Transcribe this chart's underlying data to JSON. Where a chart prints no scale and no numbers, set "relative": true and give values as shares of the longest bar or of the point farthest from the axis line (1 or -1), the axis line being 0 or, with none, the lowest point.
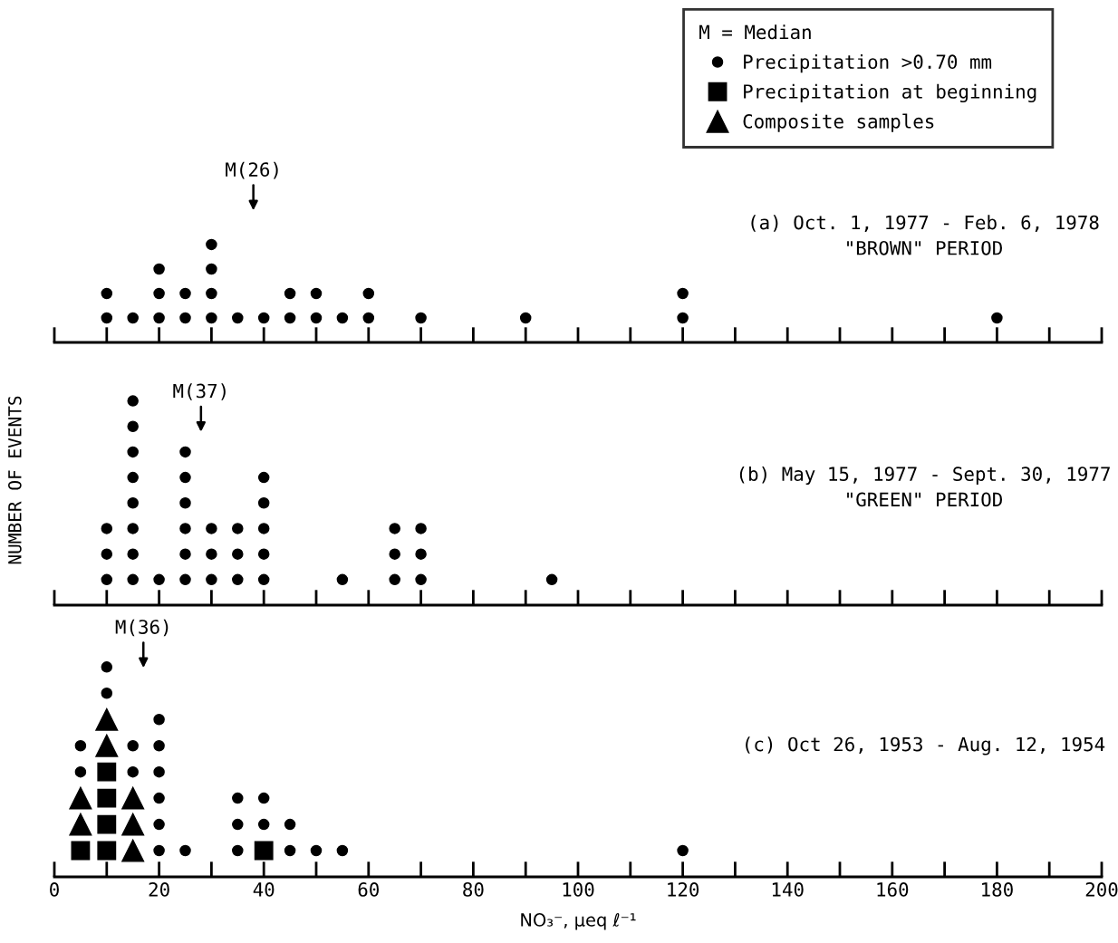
{
  "chart_data": [
    {
      "type": "scatter",
      "title": "(a) Oct. 1, 1977 - Feb. 6, 1978\n\"BROWN\" PERIOD",
      "relative": true,
      "tick_labels": false,
      "grid": false,
      "xlim": [
        0,
        200
      ],
      "xticks": [
        0,
        20,
        40,
        60,
        80,
        100,
        120,
        140,
        160,
        180,
        200
      ],
      "annotations": [
        "M(26)"
      ],
      "series": [
        {
          "color": "#000000",
          "marker": "circle",
          "x": [
            10,
            10,
            15,
            20,
            20,
            20,
            25,
            25,
            30,
            30,
            30,
            30,
            35,
            40,
            45,
            45,
            50,
            50,
            55,
            60,
            60,
            70,
            90,
            120,
            120,
            180
          ],
          "values": [
            0.25,
            0.5,
            0.25,
            0.25,
            0.5,
            0.75,
            0.25,
            0.5,
            0.25,
            0.5,
            0.75,
            1,
            0.25,
            0.25,
            0.25,
            0.5,
            0.25,
            0.5,
            0.25,
            0.25,
            0.5,
            0.25,
            0.25,
            0.25,
            0.5,
            0.25
          ]
        }
      ]
    },
    {
      "type": "scatter",
      "title": "(b) May 15, 1977 - Sept. 30, 1977\n\"GREEN\" PERIOD",
      "relative": true,
      "ylabel": "NUMBER OF EVENTS",
      "tick_labels": false,
      "grid": false,
      "xlim": [
        0,
        200
      ],
      "xticks": [
        0,
        20,
        40,
        60,
        80,
        100,
        120,
        140,
        160,
        180,
        200
      ],
      "annotations": [
        "M(37)"
      ],
      "series": [
        {
          "color": "#000000",
          "marker": "circle",
          "x": [
            10,
            10,
            10,
            15,
            15,
            15,
            15,
            15,
            15,
            15,
            15,
            20,
            25,
            25,
            25,
            25,
            25,
            25,
            30,
            30,
            30,
            35,
            35,
            35,
            40,
            40,
            40,
            40,
            40,
            55,
            65,
            65,
            65,
            70,
            70,
            70,
            95
          ],
          "values": [
            0.125,
            0.25,
            0.375,
            0.125,
            0.25,
            0.375,
            0.5,
            0.625,
            0.75,
            0.875,
            1,
            0.125,
            0.125,
            0.25,
            0.375,
            0.5,
            0.625,
            0.75,
            0.125,
            0.25,
            0.375,
            0.125,
            0.25,
            0.375,
            0.125,
            0.25,
            0.375,
            0.5,
            0.625,
            0.125,
            0.125,
            0.25,
            0.375,
            0.125,
            0.25,
            0.375,
            0.125
          ]
        }
      ]
    },
    {
      "type": "scatter",
      "title": "(c) Oct 26, 1953 - Aug. 12, 1954",
      "relative": true,
      "legend": "top right",
      "legend_title": "M = Median",
      "xlabel": "NO₃⁻, μeq ℓ⁻¹",
      "grid": false,
      "xlim": [
        0,
        200
      ],
      "xticks": [
        0,
        20,
        40,
        60,
        80,
        100,
        120,
        140,
        160,
        180,
        200
      ],
      "annotations": [
        "M(36)"
      ],
      "series": [
        {
          "name": "Precipitation >0.70 mm",
          "color": "#000000",
          "marker": "circle",
          "x": [
            5,
            5,
            10,
            10,
            15,
            15,
            20,
            20,
            20,
            20,
            20,
            20,
            25,
            35,
            35,
            35,
            40,
            40,
            45,
            45,
            50,
            55,
            120
          ],
          "values": [
            0.5,
            0.625,
            0.875,
            1,
            0.5,
            0.625,
            0.125,
            0.25,
            0.375,
            0.5,
            0.625,
            0.75,
            0.125,
            0.125,
            0.25,
            0.375,
            0.25,
            0.375,
            0.125,
            0.25,
            0.125,
            0.125,
            0.125
          ]
        },
        {
          "name": "Precipitation at beginning",
          "color": "#000000",
          "marker": "square",
          "x": [
            5,
            10,
            10,
            10,
            10,
            40
          ],
          "values": [
            0.125,
            0.125,
            0.25,
            0.375,
            0.5,
            0.125
          ]
        },
        {
          "name": "Composite samples",
          "color": "#000000",
          "marker": "triangle",
          "x": [
            5,
            5,
            10,
            10,
            15,
            15,
            15
          ],
          "values": [
            0.25,
            0.375,
            0.625,
            0.75,
            0.125,
            0.25,
            0.375
          ]
        }
      ]
    }
  ]
}
